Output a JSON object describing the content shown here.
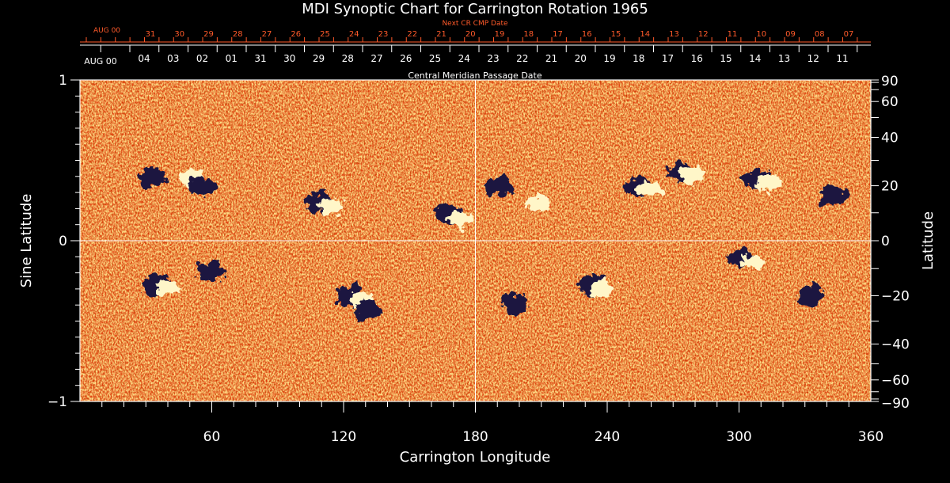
{
  "chart_data": {
    "type": "heatmap",
    "title": "MDI Synoptic Chart for Carrington Rotation 1965",
    "xlabel": "Carrington Longitude",
    "ylabel_left": "Sine Latitude",
    "ylabel_right": "Latitude",
    "xlim": [
      0,
      360
    ],
    "ylim": [
      -1,
      1
    ],
    "x_ticks": [
      60,
      120,
      180,
      240,
      300,
      360
    ],
    "y_ticks_left": [
      {
        "value": 1,
        "label": "1"
      },
      {
        "value": 0,
        "label": "0"
      },
      {
        "value": -1,
        "label": "−1"
      }
    ],
    "y_ticks_right": [
      "90",
      "60",
      "40",
      "20",
      "0",
      "−20",
      "−40",
      "−60",
      "−90"
    ],
    "y_ticks_right_deg": [
      90,
      60,
      40,
      20,
      0,
      -20,
      -40,
      -60,
      -90
    ],
    "grid_lines": {
      "longitude": 180,
      "sine_latitude": 0
    },
    "top_axis_cmp": {
      "label": "Central Meridian Passage Date",
      "start_label": "AUG 00",
      "dates": [
        "04",
        "03",
        "02",
        "01",
        "31",
        "30",
        "29",
        "28",
        "27",
        "26",
        "25",
        "24",
        "23",
        "22",
        "21",
        "20",
        "19",
        "18",
        "17",
        "16",
        "15",
        "14",
        "13",
        "12",
        "11"
      ]
    },
    "top_axis_next": {
      "label": "Next CR CMP Date",
      "start_label": "AUG 00",
      "dates": [
        "31",
        "30",
        "29",
        "28",
        "27",
        "26",
        "25",
        "24",
        "23",
        "22",
        "21",
        "20",
        "19",
        "18",
        "17",
        "16",
        "15",
        "14",
        "13",
        "12",
        "11",
        "10",
        "09",
        "08",
        "07"
      ]
    },
    "colors": {
      "background": "#000000",
      "field_base": "#e03a0a",
      "positive": "#fff6c8",
      "negative": "#1a1240",
      "axis": "#ffffff",
      "next_axis": "#ff5a2a"
    },
    "active_regions": [
      {
        "lon": 35,
        "sinlat": 0.38,
        "polarity": "negative"
      },
      {
        "lon": 48,
        "sinlat": 0.4,
        "polarity": "positive"
      },
      {
        "lon": 58,
        "sinlat": 0.33,
        "polarity": "negative"
      },
      {
        "lon": 111,
        "sinlat": 0.23,
        "polarity": "mixed"
      },
      {
        "lon": 170,
        "sinlat": 0.15,
        "polarity": "mixed"
      },
      {
        "lon": 193,
        "sinlat": 0.33,
        "polarity": "negative"
      },
      {
        "lon": 205,
        "sinlat": 0.25,
        "polarity": "positive"
      },
      {
        "lon": 256,
        "sinlat": 0.33,
        "polarity": "mixed"
      },
      {
        "lon": 275,
        "sinlat": 0.42,
        "polarity": "mixed"
      },
      {
        "lon": 310,
        "sinlat": 0.38,
        "polarity": "mixed"
      },
      {
        "lon": 345,
        "sinlat": 0.27,
        "polarity": "negative"
      },
      {
        "lon": 37,
        "sinlat": -0.28,
        "polarity": "mixed"
      },
      {
        "lon": 62,
        "sinlat": -0.2,
        "polarity": "negative"
      },
      {
        "lon": 125,
        "sinlat": -0.35,
        "polarity": "mixed"
      },
      {
        "lon": 133,
        "sinlat": -0.44,
        "polarity": "negative"
      },
      {
        "lon": 200,
        "sinlat": -0.4,
        "polarity": "negative"
      },
      {
        "lon": 235,
        "sinlat": -0.28,
        "polarity": "mixed"
      },
      {
        "lon": 303,
        "sinlat": -0.12,
        "polarity": "mixed"
      },
      {
        "lon": 335,
        "sinlat": -0.35,
        "polarity": "negative"
      }
    ]
  }
}
